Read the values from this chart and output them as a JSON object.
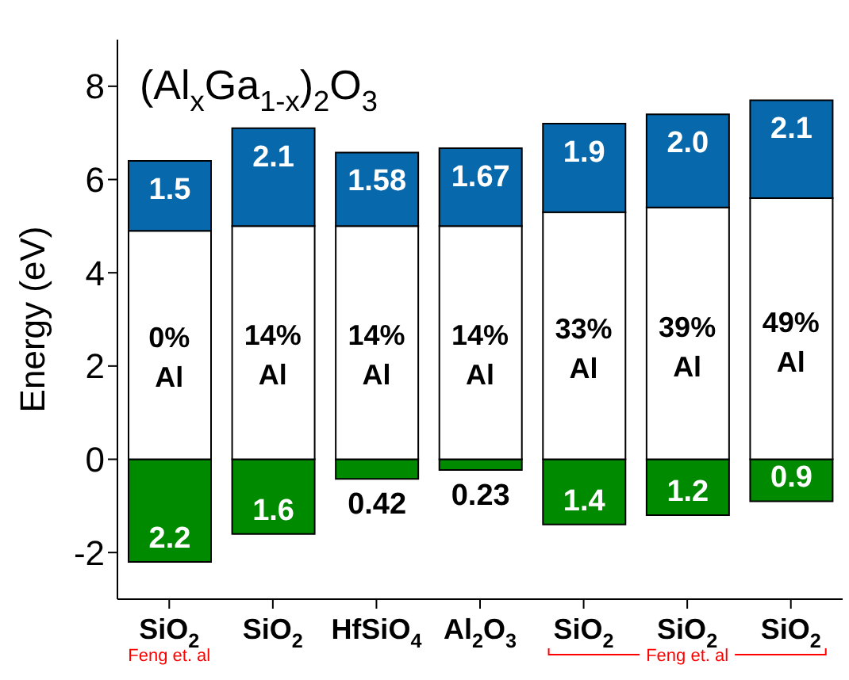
{
  "chart_data": {
    "type": "bar",
    "title": "(Al$_{x}$Ga$_{1-x}$)$_{2}$O$_{3}$",
    "ylabel": "Energy (eV)",
    "categories": [
      "SiO$_{2}$",
      "SiO$_{2}$",
      "HfSiO$_{4}$",
      "Al$_{2}$O$_{3}$",
      "SiO$_{2}$",
      "SiO$_{2}$",
      "SiO$_{2}$"
    ],
    "series": [
      {
        "color": "#008a00",
        "base": [
          -2.2,
          -1.6,
          -0.42,
          -0.23,
          -1.4,
          -1.2,
          -0.9
        ],
        "values": [
          2.2,
          1.6,
          0.42,
          0.23,
          1.4,
          1.2,
          0.9
        ],
        "data_labels": true
      },
      {
        "color": "#ffffff",
        "base": [
          0,
          0,
          0,
          0,
          0,
          0,
          0
        ],
        "values": [
          4.9,
          5.0,
          5.0,
          5.0,
          5.3,
          5.4,
          5.6
        ]
      },
      {
        "color": "#0868ac",
        "base": [
          4.9,
          5.0,
          5.0,
          5.0,
          5.3,
          5.4,
          5.6
        ],
        "values": [
          1.5,
          2.1,
          1.58,
          1.67,
          1.9,
          2.0,
          2.1
        ],
        "value_labels": [
          "1.5",
          "2.1",
          "1.58",
          "1.67",
          "1.9",
          "2.0",
          "2.1"
        ]
      }
    ],
    "ylim": [
      -3,
      9
    ],
    "yticks": [
      -2,
      0,
      2,
      4,
      6,
      8
    ],
    "annotations": [
      "0% Al",
      "14% Al",
      "14% Al",
      "14% Al",
      "33% Al",
      "39% Al",
      "49% Al",
      "Feng et. al",
      "Feng et. al"
    ]
  }
}
